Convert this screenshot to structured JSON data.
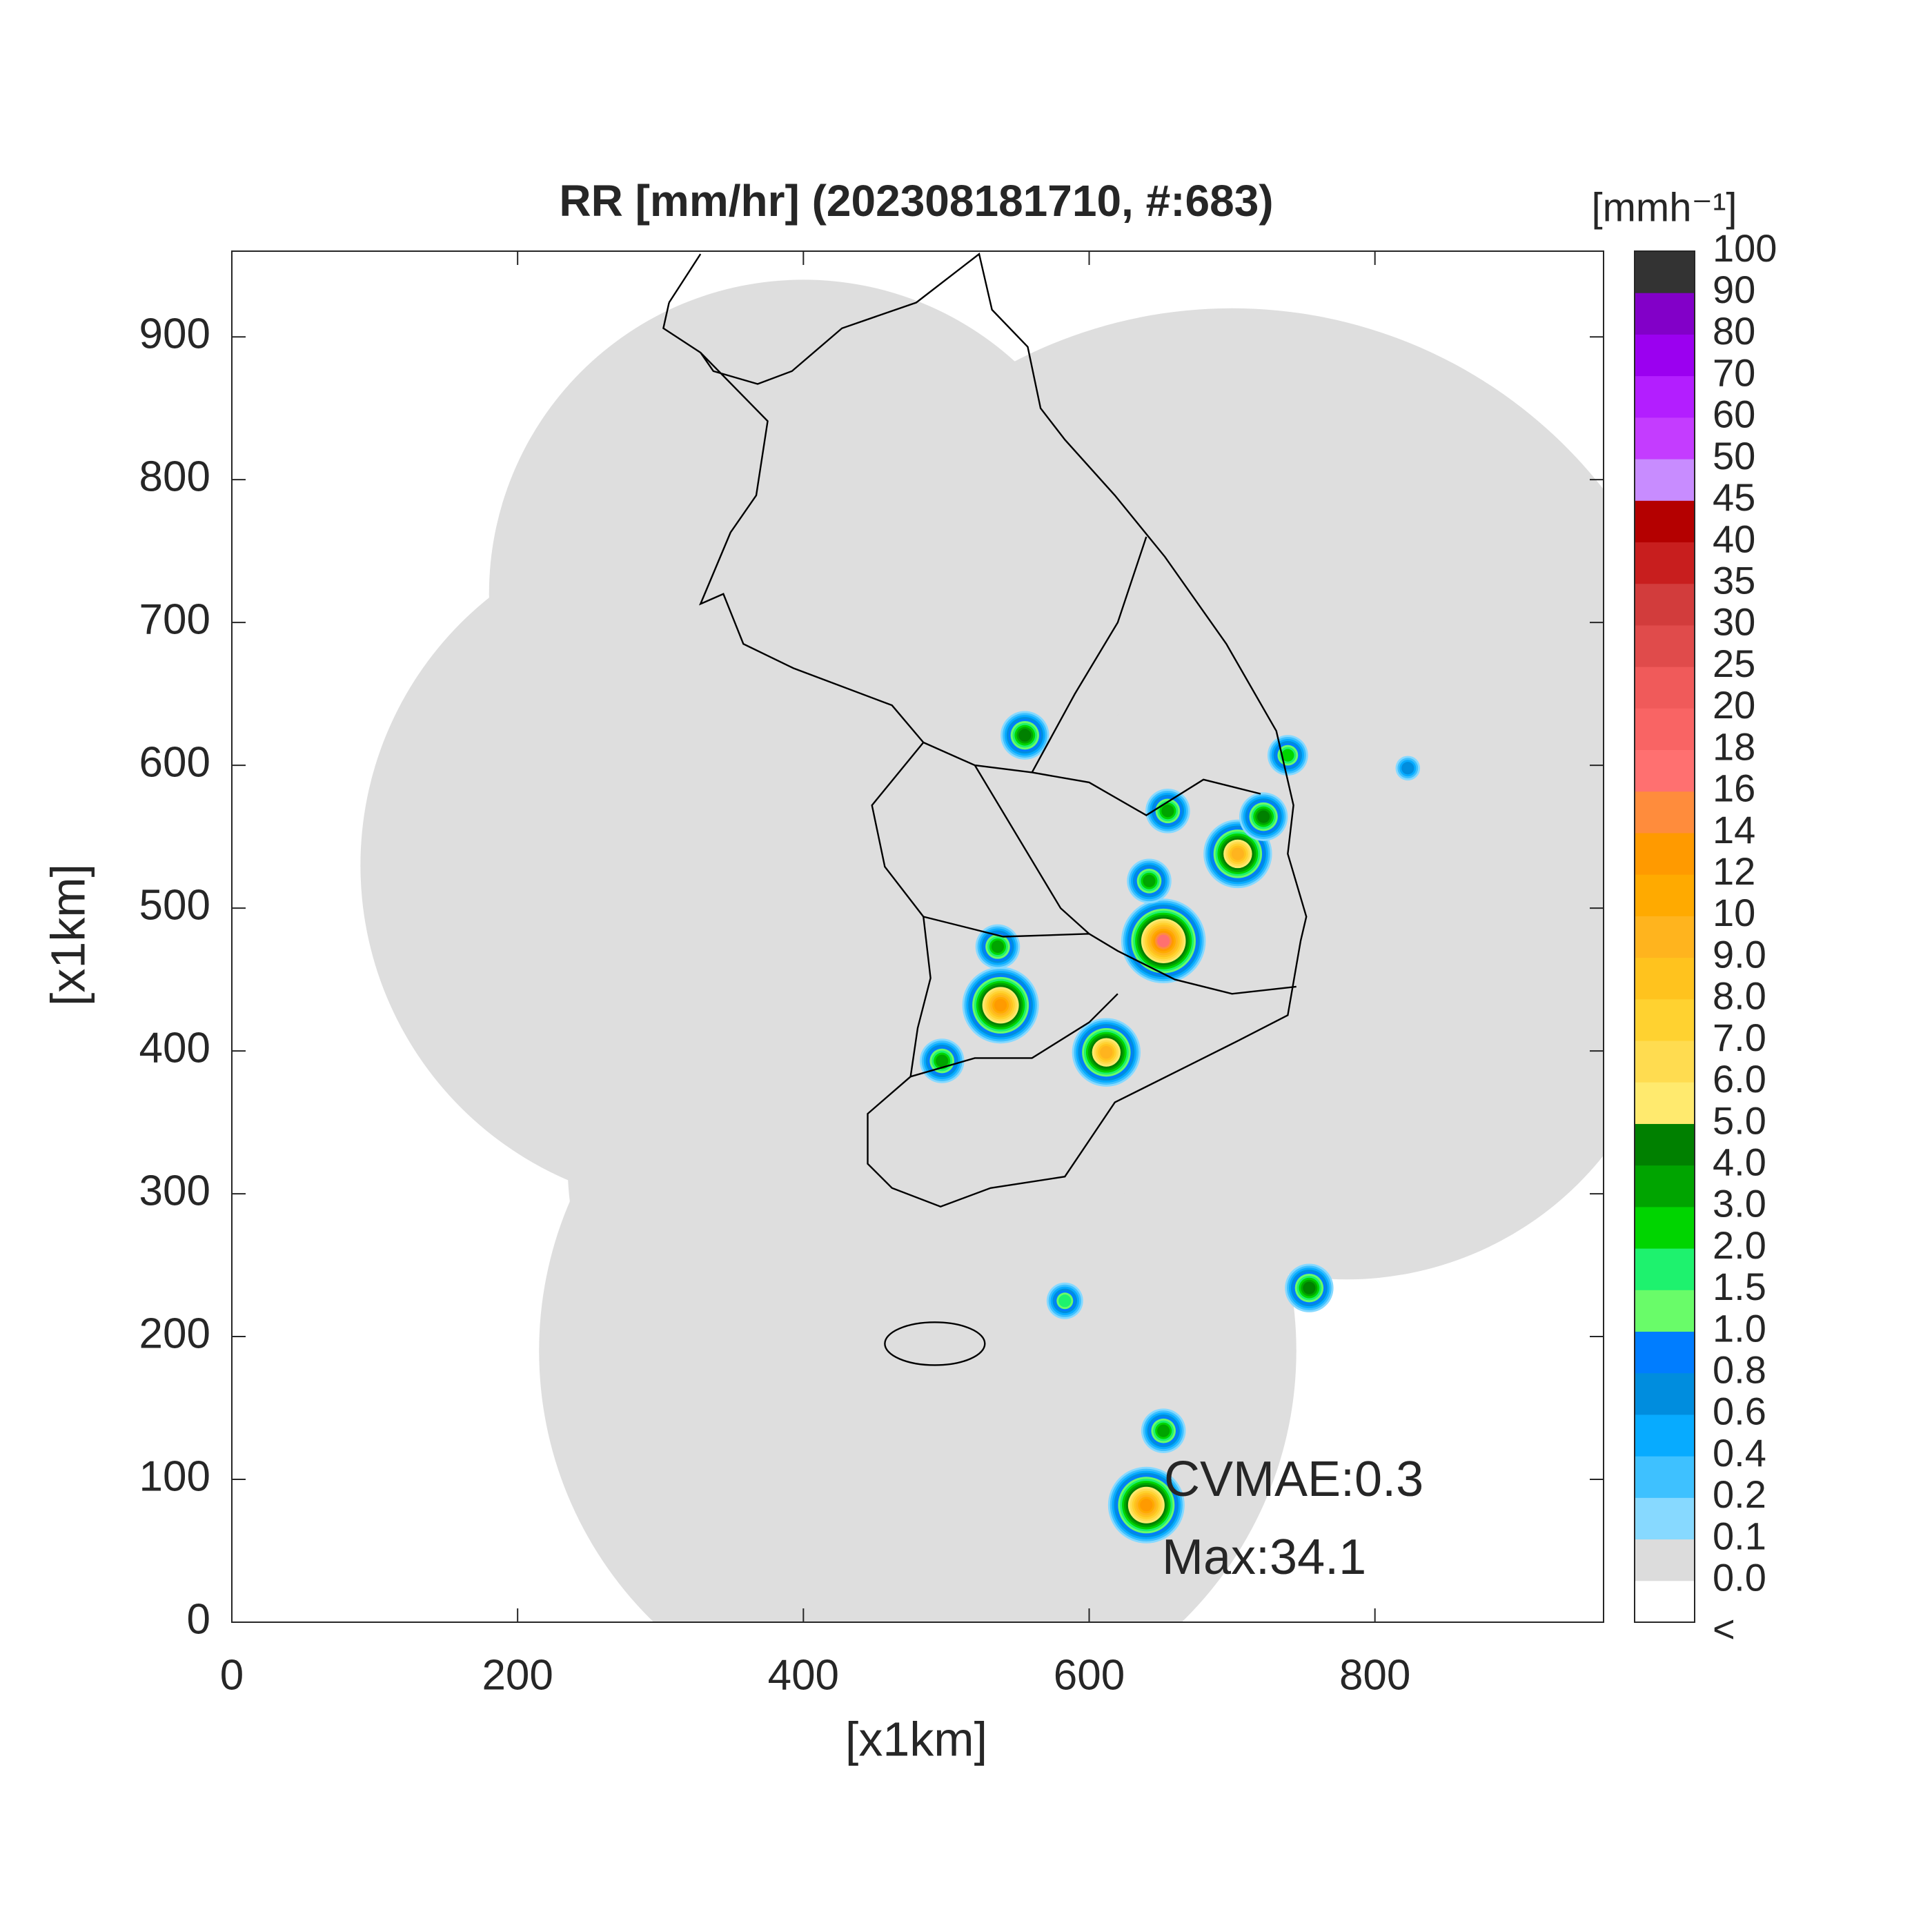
{
  "chart_data": {
    "type": "map",
    "title": "RR [mm/hr] (202308181710, #:683)",
    "xlabel": "[x1km]",
    "ylabel": "[x1km]",
    "xlim": [
      0,
      960
    ],
    "ylim": [
      0,
      960
    ],
    "xticks": [
      0,
      200,
      400,
      600,
      800
    ],
    "yticks": [
      0,
      100,
      200,
      300,
      400,
      500,
      600,
      700,
      800,
      900
    ],
    "x": [
      640,
      704,
      652,
      538,
      612,
      555,
      652,
      754,
      497,
      642,
      722,
      655,
      536,
      739,
      583,
      823
    ],
    "y": [
      82,
      538,
      477,
      432,
      399,
      621,
      134,
      234,
      393,
      519,
      564,
      568,
      473,
      607,
      225,
      598
    ],
    "values": [
      12,
      9,
      16,
      12,
      9,
      4,
      3,
      4,
      3,
      3,
      4,
      3,
      3,
      2,
      1.5,
      0.6
    ],
    "annotations": [
      "CVMAE:0.3",
      "Max:34.1"
    ],
    "colorbar": {
      "title": "[mmh⁻¹]",
      "labels": [
        "<",
        "0.0",
        "0.1",
        "0.2",
        "0.4",
        "0.6",
        "0.8",
        "1.0",
        "1.5",
        "2.0",
        "3.0",
        "4.0",
        "5.0",
        "6.0",
        "7.0",
        "8.0",
        "9.0",
        "10",
        "12",
        "14",
        "16",
        "18",
        "20",
        "25",
        "30",
        "35",
        "40",
        "45",
        "50",
        "60",
        "70",
        "80",
        "90",
        "100"
      ],
      "bounds": [
        0,
        0.1,
        0.2,
        0.4,
        0.6,
        0.8,
        1,
        1.5,
        2,
        3,
        4,
        5,
        6,
        7,
        8,
        9,
        10,
        12,
        14,
        16,
        18,
        20,
        25,
        30,
        35,
        40,
        45,
        50,
        60,
        70,
        80,
        90,
        100
      ],
      "colors": [
        "#ffffff",
        "#dcdcdc",
        "#87d9ff",
        "#3ec1ff",
        "#07abff",
        "#008dde",
        "#007dff",
        "#69fc69",
        "#1ef26e",
        "#00d500",
        "#00a400",
        "#008000",
        "#ffea6e",
        "#ffdc50",
        "#ffd230",
        "#ffc31e",
        "#ffb41e",
        "#ffaa00",
        "#ff9a00",
        "#ff8c3c",
        "#ff7070",
        "#f96464",
        "#f05a5a",
        "#e04b4b",
        "#d23c3c",
        "#c81e1e",
        "#b40000",
        "#c88cff",
        "#c43cff",
        "#b31eff",
        "#9b00f0",
        "#8200c8",
        "#333333"
      ]
    }
  }
}
